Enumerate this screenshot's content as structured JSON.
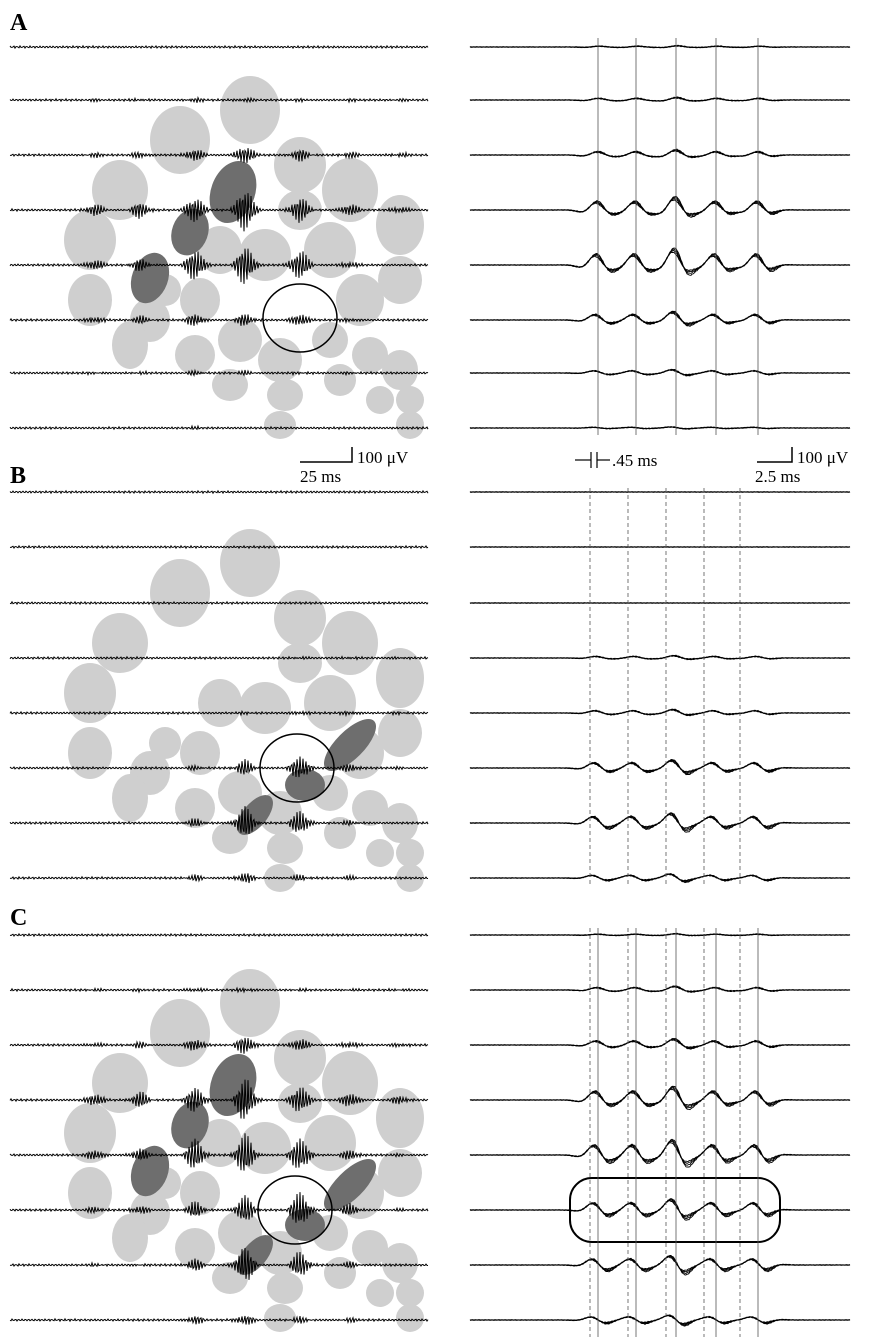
{
  "panel_labels": [
    "A",
    "B",
    "C"
  ],
  "left_scale": {
    "amplitude": "100 μV",
    "time": "25 ms"
  },
  "right_scale": {
    "amplitude": "100 μV",
    "time": "2.5 ms"
  },
  "interval_label": ".45 ms"
}
